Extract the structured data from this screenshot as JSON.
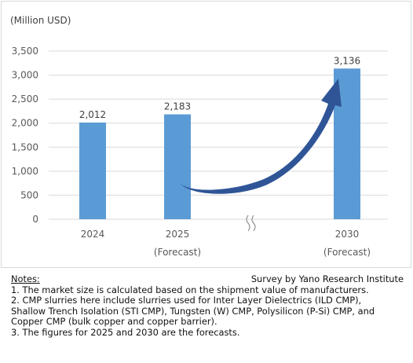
{
  "chart_data": {
    "type": "bar",
    "unit_label": "(Million USD)",
    "categories": [
      "2024",
      "2025",
      "2030"
    ],
    "category_sublabels": [
      "",
      "(Forecast)",
      "(Forecast)"
    ],
    "values": [
      2012,
      2183,
      3136
    ],
    "data_labels": [
      "2,012",
      "2,183",
      "3,136"
    ],
    "ylim": [
      0,
      3500
    ],
    "y_ticks": [
      0,
      500,
      1000,
      1500,
      2000,
      2500,
      3000,
      3500
    ],
    "y_tick_labels": [
      "0",
      "500",
      "1,000",
      "1,500",
      "2,000",
      "2,500",
      "3,000",
      "3,500"
    ],
    "grid": true,
    "axis_break_between": [
      "2025",
      "2030"
    ],
    "trend_arrow": {
      "from": "2025",
      "to": "2030"
    },
    "colors": {
      "bar": "#5b9bd5",
      "arrow": "#2f5597",
      "grid": "#d9d9d9"
    }
  },
  "notes": {
    "title": "Notes:",
    "source": "Survey by Yano Research Institute",
    "lines": [
      "1. The market size is calculated based on the shipment value of manufacturers.",
      "2. CMP slurries here include  slurries used for Inter Layer Dielectrics (ILD CMP),",
      "Shallow Trench Isolation (STI CMP), Tungsten (W) CMP, Polysilicon (P-Si) CMP, and",
      "Copper CMP (bulk copper and copper barrier).",
      "3. The figures for 2025 and 2030 are the forecasts."
    ]
  }
}
